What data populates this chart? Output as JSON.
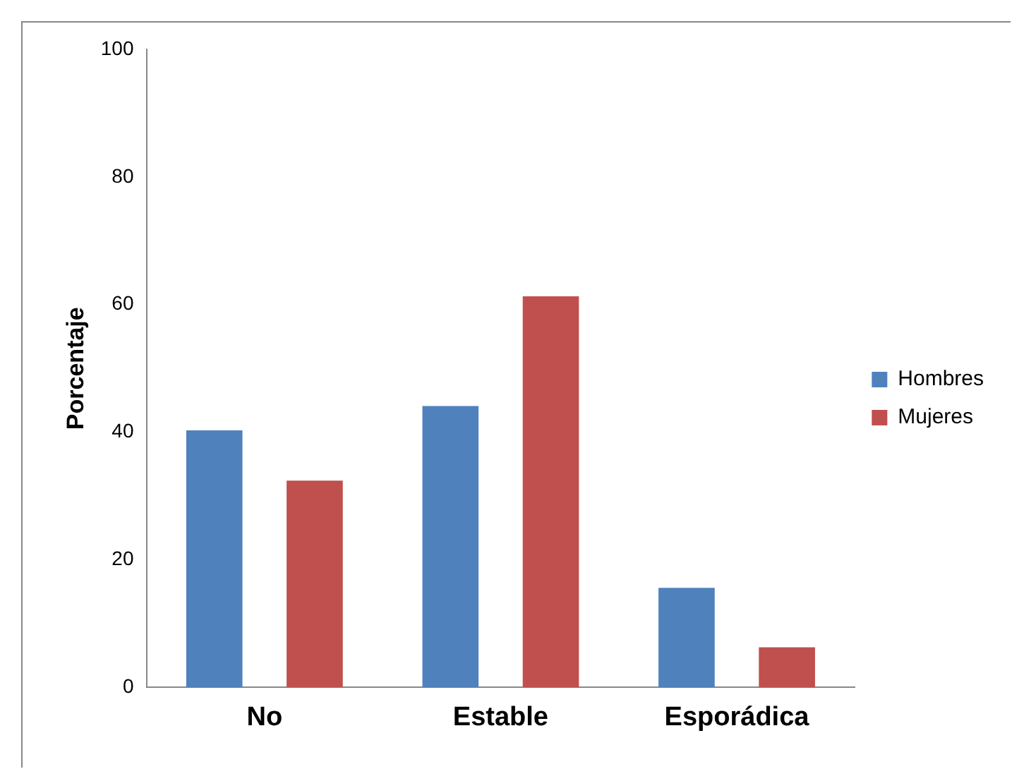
{
  "chart_data": {
    "type": "bar",
    "ylabel": "Porcentaje",
    "categories": [
      "No",
      "Estable",
      "Esporádica"
    ],
    "series": [
      {
        "name": "Hombres",
        "color": "#4f81bd",
        "values": [
          40.3,
          44.1,
          15.6
        ]
      },
      {
        "name": "Mujeres",
        "color": "#c0504d",
        "values": [
          32.4,
          61.3,
          6.3
        ]
      }
    ],
    "ylim": [
      0,
      100
    ],
    "yticks": [
      0,
      20,
      40,
      60,
      80,
      100
    ],
    "grid": false,
    "legend": "right"
  }
}
